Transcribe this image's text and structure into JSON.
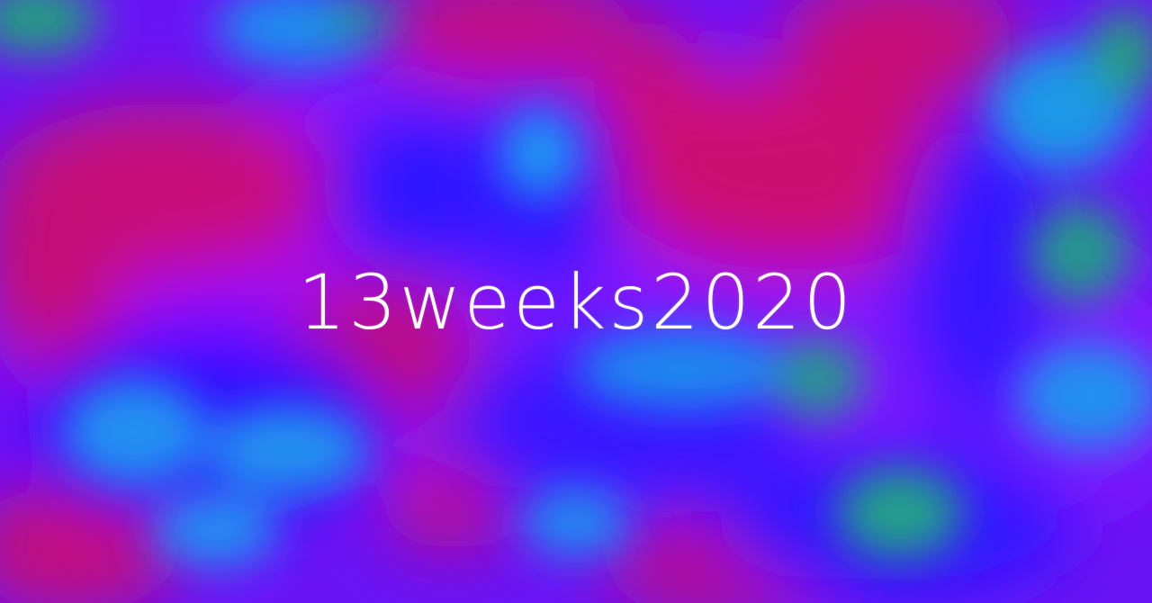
{
  "banner": {
    "title": "13weeks2020"
  },
  "colors": {
    "magenta": "#cc0a7a",
    "violet": "#9a10ff",
    "blue": "#3010ff",
    "sky": "#1e90f0",
    "teal": "#1f9a8a",
    "text": "#ffffff"
  }
}
